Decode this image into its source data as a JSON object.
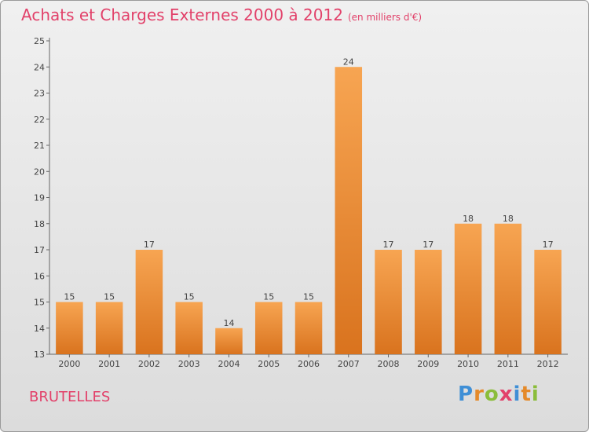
{
  "title": "Achats et Charges Externes 2000 à 2012",
  "subtitle": "(en milliers d'€)",
  "town": "BRUTELLES",
  "logo": {
    "letters": [
      {
        "ch": "P",
        "color": "#3f8fd6"
      },
      {
        "ch": "r",
        "color": "#e58a2a"
      },
      {
        "ch": "o",
        "color": "#8bbd3a"
      },
      {
        "ch": "x",
        "color": "#e2416a"
      },
      {
        "ch": "i",
        "color": "#3f8fd6"
      },
      {
        "ch": "t",
        "color": "#e58a2a"
      },
      {
        "ch": "i",
        "color": "#8bbd3a"
      }
    ]
  },
  "chart_data": {
    "type": "bar",
    "categories": [
      "2000",
      "2001",
      "2002",
      "2003",
      "2004",
      "2005",
      "2006",
      "2007",
      "2008",
      "2009",
      "2010",
      "2011",
      "2012"
    ],
    "values": [
      15,
      15,
      17,
      15,
      14,
      15,
      15,
      24,
      17,
      17,
      18,
      18,
      17
    ],
    "data_labels": [
      "15",
      "15",
      "17",
      "15",
      "14",
      "15",
      "15",
      "24",
      "17",
      "17",
      "18",
      "18",
      "17"
    ],
    "ylim": [
      13,
      25
    ],
    "yticks": [
      13,
      14,
      15,
      16,
      17,
      18,
      19,
      20,
      21,
      22,
      23,
      24,
      25
    ],
    "title": "Achats et Charges Externes 2000 à 2012",
    "subtitle": "(en milliers d'€)",
    "grid": false,
    "bar_color_light": "#f7a552",
    "bar_color_dark": "#d9731e"
  }
}
